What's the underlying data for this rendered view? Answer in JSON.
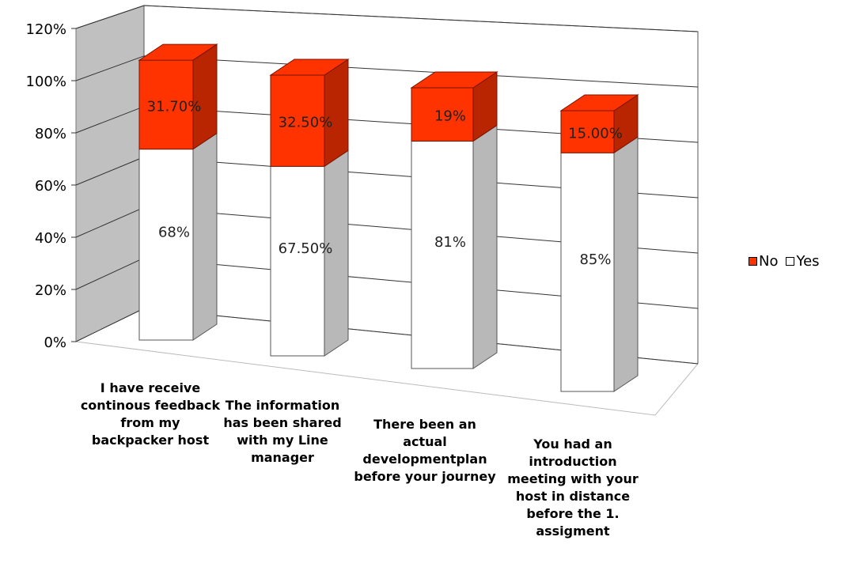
{
  "chart_data": {
    "type": "bar",
    "stacked": true,
    "three_d": true,
    "categories": [
      "I have receive continous feedback from my backpacker host",
      "The information has been shared with my Line manager",
      "There been an actual developmentplan before your journey",
      "You had an introduction meeting with your host in distance before the 1. assigment"
    ],
    "series": [
      {
        "name": "Yes",
        "color": "#ffffff",
        "values": [
          68,
          67.5,
          81,
          85
        ],
        "labels": [
          "68%",
          "67.50%",
          "81%",
          "85%"
        ]
      },
      {
        "name": "No",
        "color": "#ff3300",
        "values": [
          31.7,
          32.5,
          19,
          15
        ],
        "labels": [
          "31.70%",
          "32.50%",
          "19%",
          "15.00%"
        ]
      }
    ],
    "yticks": [
      "0%",
      "20%",
      "40%",
      "60%",
      "80%",
      "100%",
      "120%"
    ],
    "ylim": [
      0,
      120
    ],
    "grid": true,
    "legend_position": "right"
  }
}
